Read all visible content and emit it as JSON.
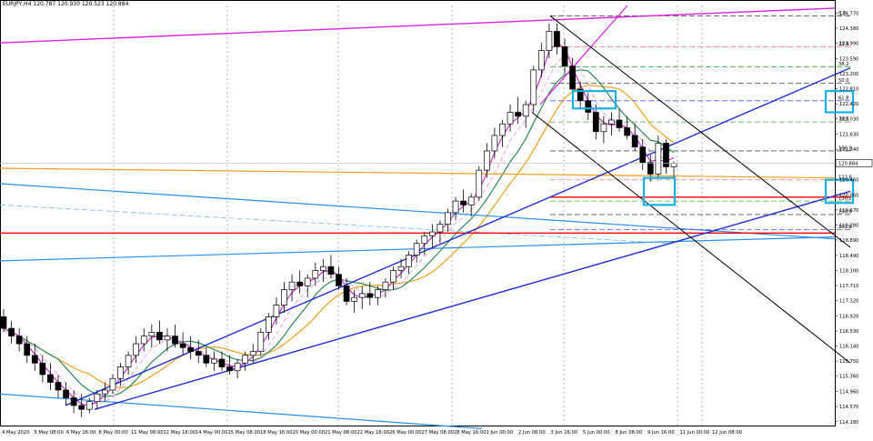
{
  "header": {
    "symbol_line": "EURJPY,H4  120.787 120.930 120.523 120.884"
  },
  "chart_data": {
    "type": "candlestick",
    "symbol": "EURJPY",
    "timeframe": "H4",
    "ohlc_readout": {
      "open": 120.787,
      "high": 120.93,
      "low": 120.523,
      "close": 120.884
    },
    "current_price_label": "120.884",
    "ylim": [
      114.08,
      124.97
    ],
    "y_ticks": [
      "124.770",
      "124.380",
      "123.990",
      "123.590",
      "123.200",
      "122.810",
      "122.420",
      "122.030",
      "121.630",
      "121.240",
      "120.850",
      "120.460",
      "120.060",
      "119.670",
      "119.280",
      "118.890",
      "118.490",
      "118.100",
      "117.710",
      "117.320",
      "116.920",
      "116.530",
      "116.140",
      "115.750",
      "115.360",
      "114.960",
      "114.570",
      "114.180"
    ],
    "y_tick_values": [
      124.77,
      124.38,
      123.99,
      123.59,
      123.2,
      122.81,
      122.42,
      122.03,
      121.63,
      121.24,
      120.85,
      120.46,
      120.06,
      119.67,
      119.28,
      118.89,
      118.49,
      118.1,
      117.71,
      117.32,
      116.92,
      116.53,
      116.14,
      115.75,
      115.36,
      114.96,
      114.57,
      114.18
    ],
    "x_ticks": [
      "4 May 2020",
      "5 May 08:00",
      "6 May 16:00",
      "8 May 00:00",
      "11 May 08:00",
      "12 May 16:00",
      "14 May 00:00",
      "15 May 08:00",
      "18 May 16:00",
      "20 May 00:00",
      "21 May 08:00",
      "22 May 16:00",
      "26 May 00:00",
      "27 May 08:00",
      "28 May 16:00",
      "1 Jun 00:00",
      "2 Jun 08:00",
      "3 Jun 16:00",
      "5 Jun 00:00",
      "8 Jun 08:00",
      "9 Jun 16:00",
      "11 Jun 00:00",
      "12 Jun 08:00"
    ],
    "candles": [
      [
        116.9,
        117.1,
        116.5,
        116.6
      ],
      [
        116.6,
        116.8,
        116.2,
        116.4
      ],
      [
        116.4,
        116.6,
        116.0,
        116.2
      ],
      [
        116.2,
        116.4,
        115.7,
        115.9
      ],
      [
        115.9,
        116.2,
        115.5,
        115.7
      ],
      [
        115.7,
        115.9,
        115.2,
        115.4
      ],
      [
        115.4,
        115.7,
        115.0,
        115.2
      ],
      [
        115.2,
        115.4,
        114.8,
        115.0
      ],
      [
        115.0,
        115.2,
        114.6,
        114.8
      ],
      [
        114.8,
        115.0,
        114.4,
        114.6
      ],
      [
        114.6,
        114.9,
        114.3,
        114.5
      ],
      [
        114.5,
        114.8,
        114.4,
        114.7
      ],
      [
        114.7,
        115.0,
        114.5,
        114.9
      ],
      [
        114.9,
        115.2,
        114.7,
        115.0
      ],
      [
        115.0,
        115.4,
        114.9,
        115.3
      ],
      [
        115.3,
        115.7,
        115.1,
        115.6
      ],
      [
        115.6,
        116.0,
        115.4,
        115.9
      ],
      [
        115.9,
        116.4,
        115.7,
        116.2
      ],
      [
        116.2,
        116.6,
        116.0,
        116.4
      ],
      [
        116.4,
        116.7,
        116.1,
        116.5
      ],
      [
        116.5,
        116.8,
        116.2,
        116.3
      ],
      [
        116.3,
        116.6,
        116.0,
        116.4
      ],
      [
        116.4,
        116.7,
        116.1,
        116.2
      ],
      [
        116.2,
        116.5,
        115.9,
        116.1
      ],
      [
        116.1,
        116.4,
        115.8,
        116.0
      ],
      [
        116.0,
        116.3,
        115.7,
        115.9
      ],
      [
        115.9,
        116.1,
        115.6,
        115.7
      ],
      [
        115.7,
        116.0,
        115.5,
        115.8
      ],
      [
        115.8,
        116.0,
        115.5,
        115.6
      ],
      [
        115.6,
        115.9,
        115.4,
        115.5
      ],
      [
        115.5,
        115.8,
        115.3,
        115.7
      ],
      [
        115.7,
        116.0,
        115.5,
        115.9
      ],
      [
        115.9,
        116.2,
        115.7,
        116.0
      ],
      [
        116.0,
        116.6,
        115.9,
        116.5
      ],
      [
        116.5,
        117.0,
        116.3,
        116.9
      ],
      [
        116.9,
        117.4,
        116.7,
        117.2
      ],
      [
        117.2,
        117.8,
        117.0,
        117.6
      ],
      [
        117.6,
        118.0,
        117.3,
        117.8
      ],
      [
        117.8,
        118.1,
        117.5,
        117.7
      ],
      [
        117.7,
        118.0,
        117.4,
        117.9
      ],
      [
        117.9,
        118.3,
        117.7,
        118.1
      ],
      [
        118.1,
        118.4,
        117.8,
        118.2
      ],
      [
        118.2,
        118.5,
        117.9,
        118.0
      ],
      [
        118.0,
        118.2,
        117.6,
        117.7
      ],
      [
        117.7,
        117.9,
        117.2,
        117.3
      ],
      [
        117.3,
        117.6,
        117.0,
        117.4
      ],
      [
        117.4,
        117.7,
        117.1,
        117.5
      ],
      [
        117.5,
        117.8,
        117.2,
        117.4
      ],
      [
        117.4,
        117.7,
        117.2,
        117.6
      ],
      [
        117.6,
        117.9,
        117.4,
        117.8
      ],
      [
        117.8,
        118.2,
        117.6,
        118.1
      ],
      [
        118.1,
        118.4,
        117.9,
        118.2
      ],
      [
        118.2,
        118.6,
        118.0,
        118.5
      ],
      [
        118.5,
        118.9,
        118.3,
        118.8
      ],
      [
        118.8,
        119.1,
        118.5,
        119.0
      ],
      [
        119.0,
        119.3,
        118.7,
        119.1
      ],
      [
        119.1,
        119.4,
        118.8,
        119.3
      ],
      [
        119.3,
        119.7,
        119.1,
        119.6
      ],
      [
        119.6,
        120.0,
        119.4,
        119.9
      ],
      [
        119.9,
        120.2,
        119.6,
        119.8
      ],
      [
        119.8,
        120.1,
        119.5,
        120.0
      ],
      [
        120.0,
        120.8,
        119.9,
        120.7
      ],
      [
        120.7,
        121.4,
        120.5,
        121.2
      ],
      [
        121.2,
        121.8,
        121.0,
        121.6
      ],
      [
        121.6,
        122.0,
        121.3,
        121.9
      ],
      [
        121.9,
        122.4,
        121.7,
        122.2
      ],
      [
        122.2,
        122.6,
        121.9,
        122.1
      ],
      [
        122.1,
        122.5,
        121.8,
        122.4
      ],
      [
        122.4,
        123.4,
        122.2,
        123.3
      ],
      [
        123.3,
        124.0,
        123.1,
        123.8
      ],
      [
        123.8,
        124.5,
        123.6,
        124.3
      ],
      [
        124.3,
        124.5,
        123.7,
        123.9
      ],
      [
        123.9,
        124.1,
        123.2,
        123.4
      ],
      [
        123.4,
        123.6,
        122.6,
        122.8
      ],
      [
        122.8,
        123.0,
        122.3,
        122.5
      ],
      [
        122.5,
        122.7,
        122.0,
        122.2
      ],
      [
        122.2,
        122.4,
        121.5,
        121.7
      ],
      [
        121.7,
        122.1,
        121.4,
        121.9
      ],
      [
        121.9,
        122.2,
        121.6,
        122.0
      ],
      [
        122.0,
        122.3,
        121.7,
        121.8
      ],
      [
        121.8,
        122.1,
        121.5,
        121.6
      ],
      [
        121.6,
        121.9,
        121.2,
        121.3
      ],
      [
        121.3,
        121.5,
        120.7,
        120.9
      ],
      [
        120.9,
        121.1,
        120.4,
        120.6
      ],
      [
        120.6,
        121.6,
        120.5,
        121.4
      ],
      [
        121.4,
        121.5,
        120.6,
        120.787
      ],
      [
        120.787,
        120.93,
        120.523,
        120.884
      ]
    ],
    "horizontal_lines": [
      {
        "name": "support",
        "value": 120.0,
        "color": "#ff0000"
      },
      {
        "name": "resistance",
        "value": 119.07,
        "color": "#ff0000"
      }
    ],
    "fibonacci": {
      "levels": [
        {
          "label": "0.0",
          "value": 124.7,
          "color": "#555555"
        },
        {
          "label": "23.6",
          "value": 123.9,
          "color": "#ff6f6f"
        },
        {
          "label": "38.2",
          "value": 123.38,
          "color": "#3cb43c"
        },
        {
          "label": "50.0",
          "value": 122.95,
          "color": "#555555"
        },
        {
          "label": "61.8",
          "value": 122.5,
          "color": "#5555ff"
        },
        {
          "label": "78.6",
          "value": 121.95,
          "color": "#3cb43c"
        },
        {
          "label": "100.0",
          "value": 121.2,
          "color": "#555555"
        },
        {
          "label": "123.6",
          "value": 120.45,
          "color": "#ff6f6f"
        },
        {
          "label": "138.2",
          "value": 119.9,
          "color": "#3cb43c"
        },
        {
          "label": "150.0",
          "value": 119.55,
          "color": "#555555"
        },
        {
          "label": "161.8",
          "value": 119.16,
          "color": "#5555ff"
        }
      ]
    },
    "colors": {
      "bull": "#ffffff",
      "bear": "#000000",
      "ma_fast": "#cc33cc",
      "ma_dashed": "#e8a0e8",
      "ma_green": "#2e8b57",
      "ma_orange": "#f0a020",
      "ma_blue": "#2a8ee6",
      "trendline": "#1f2fd0",
      "magenta_line": "#e020e0",
      "channel": "#000000",
      "highlight_box": "#18b0e8"
    }
  }
}
